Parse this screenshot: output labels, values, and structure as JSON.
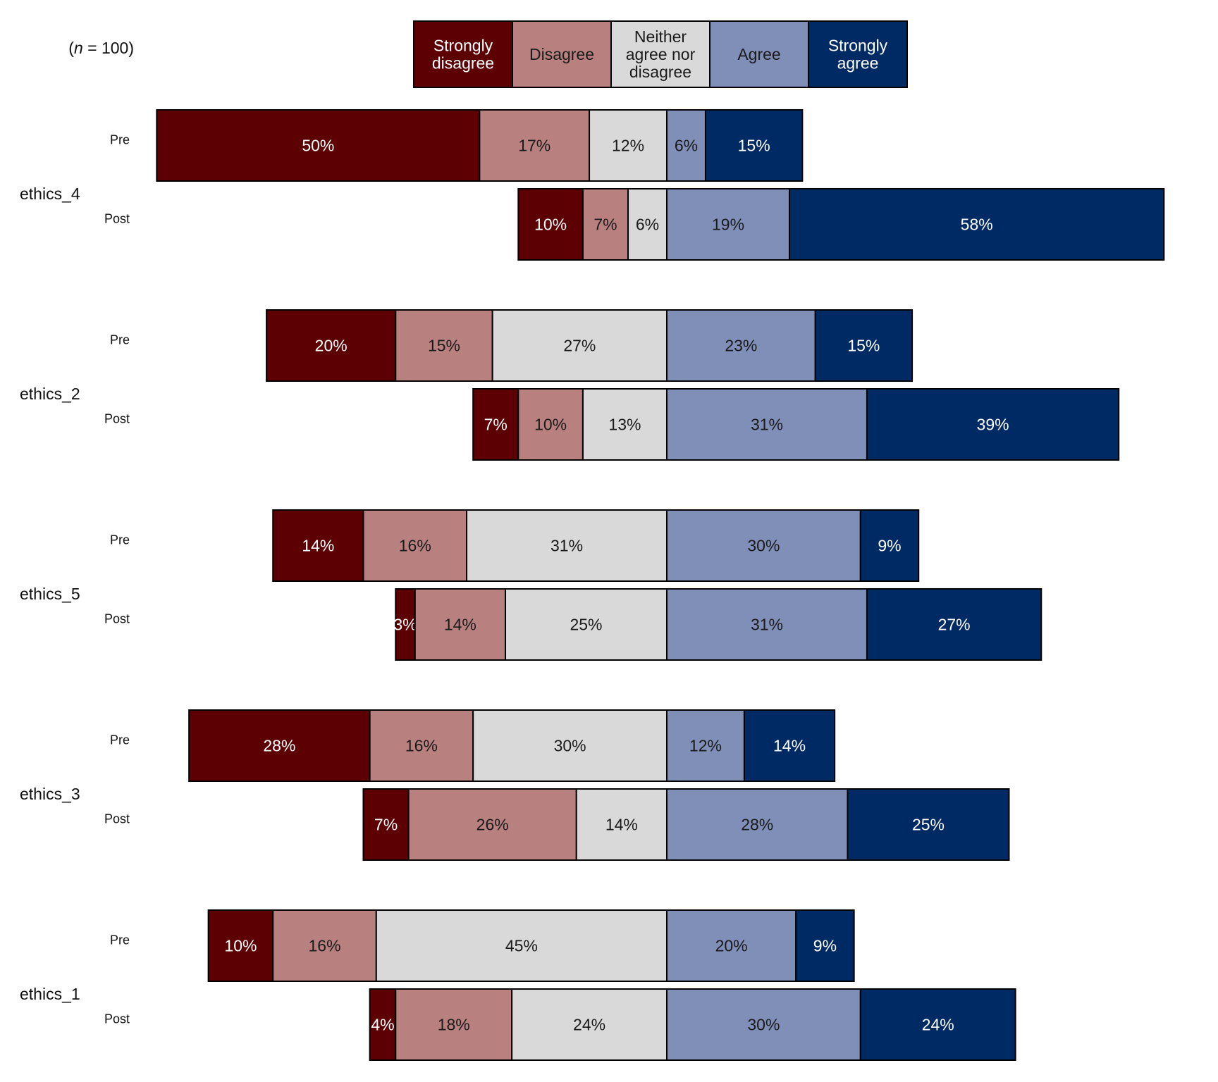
{
  "chart_data": {
    "type": "bar",
    "orientation": "horizontal",
    "stacked": true,
    "diverging": true,
    "sample_note": {
      "prefix": "(",
      "italic": "n",
      "suffix": " = 100)"
    },
    "legend": {
      "placement": "top",
      "entries": [
        "Strongly disagree",
        "Disagree",
        "Neither agree nor disagree",
        "Agree",
        "Strongly agree"
      ],
      "lines": [
        [
          "Strongly",
          "disagree"
        ],
        [
          "Disagree"
        ],
        [
          "Neither",
          "agree nor",
          "disagree"
        ],
        [
          "Agree"
        ],
        [
          "Strongly",
          "agree"
        ]
      ]
    },
    "colors": [
      "#5c0003",
      "#b98080",
      "#d9d9d9",
      "#7f8fb8",
      "#002a63"
    ],
    "label_colors": [
      "#ffffff",
      "#1a1a1a",
      "#1a1a1a",
      "#1a1a1a",
      "#ffffff"
    ],
    "unit": "%",
    "groups": [
      {
        "name": "ethics_4",
        "rows": [
          {
            "label": "Pre",
            "values": [
              50,
              17,
              12,
              6,
              15
            ]
          },
          {
            "label": "Post",
            "values": [
              10,
              7,
              6,
              19,
              58
            ]
          }
        ]
      },
      {
        "name": "ethics_2",
        "rows": [
          {
            "label": "Pre",
            "values": [
              20,
              15,
              27,
              23,
              15
            ]
          },
          {
            "label": "Post",
            "values": [
              7,
              10,
              13,
              31,
              39
            ]
          }
        ]
      },
      {
        "name": "ethics_5",
        "rows": [
          {
            "label": "Pre",
            "values": [
              14,
              16,
              31,
              30,
              9
            ]
          },
          {
            "label": "Post",
            "values": [
              3,
              14,
              25,
              31,
              27
            ]
          }
        ]
      },
      {
        "name": "ethics_3",
        "rows": [
          {
            "label": "Pre",
            "values": [
              28,
              16,
              30,
              12,
              14
            ]
          },
          {
            "label": "Post",
            "values": [
              7,
              26,
              14,
              28,
              25
            ]
          }
        ]
      },
      {
        "name": "ethics_1",
        "rows": [
          {
            "label": "Pre",
            "values": [
              10,
              16,
              45,
              20,
              9
            ]
          },
          {
            "label": "Post",
            "values": [
              4,
              18,
              24,
              30,
              24
            ]
          }
        ]
      }
    ]
  }
}
